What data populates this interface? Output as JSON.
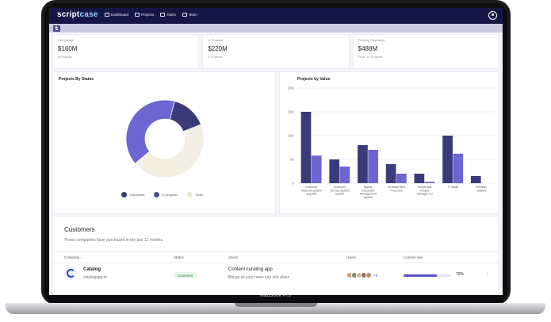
{
  "device": {
    "label": "MacBook Pro"
  },
  "app": {
    "logo_main": "script",
    "logo_accent": "case",
    "nav": [
      {
        "label": "Dashboard",
        "icon": "monitor-icon"
      },
      {
        "label": "Projects",
        "icon": "folder-icon"
      },
      {
        "label": "Tasks",
        "icon": "list-icon"
      },
      {
        "label": "Team",
        "icon": "users-icon"
      }
    ]
  },
  "stats": [
    {
      "label": "Completed",
      "value": "$160M",
      "sub": "8 Projects"
    },
    {
      "label": "In Projects",
      "value": "$220M",
      "sub": "6 Projects"
    },
    {
      "label": "Pending Payments",
      "value": "$488M",
      "sub": "From 16 Projects"
    }
  ],
  "chart_data": [
    {
      "type": "pie",
      "title": "Projects By Status",
      "categories": [
        "Completed",
        "In progress",
        "Open"
      ],
      "values": [
        40,
        15,
        45
      ],
      "colors": [
        "#6b66d1",
        "#393b7a",
        "#f3efe3"
      ],
      "legend": "bottom"
    },
    {
      "type": "bar",
      "title": "Projects by Value",
      "categories": [
        "Customer Onpremi system upgrade",
        "Customer Service system update",
        "Deploy Document Management system",
        "Increase Web Presence",
        "ScriptCase Project Manager V.2",
        "TI install",
        "Wireless network"
      ],
      "series": [
        {
          "values": [
            15000,
            5000,
            8000,
            4000,
            2000,
            10000,
            1500
          ],
          "color": "#393b7a"
        },
        {
          "values": [
            5800,
            3500,
            7000,
            2000,
            300,
            6200,
            0
          ],
          "color": "#6b66d1"
        }
      ],
      "yticks": [
        "0",
        "5K",
        "10K",
        "15K",
        "20K"
      ],
      "ylim": [
        0,
        20000
      ],
      "grid": true
    }
  ],
  "customers": {
    "title": "Customers",
    "subtitle": "These companies have purchased in the last 12 months.",
    "columns": [
      "Company",
      "Status",
      "About",
      "Users",
      "License use"
    ],
    "rows": [
      {
        "name": "Catalog",
        "url": "catalogapp.io",
        "status": "Customer",
        "about_title": "Content curating app",
        "about_desc": "Brings all your news into one place",
        "users_more": "+5",
        "license_pct": 0.7,
        "license_text": "70%"
      }
    ]
  }
}
